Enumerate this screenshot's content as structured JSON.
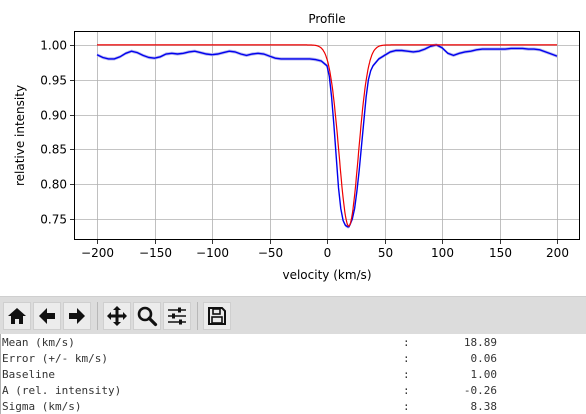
{
  "chart_data": {
    "type": "line",
    "title": "Profile",
    "xlabel": "velocity (km/s)",
    "ylabel": "relative intensity",
    "xlim": [
      -220,
      220
    ],
    "ylim": [
      0.72,
      1.02
    ],
    "grid": true,
    "xticks": [
      -200,
      -150,
      -100,
      -50,
      0,
      50,
      100,
      150,
      200
    ],
    "xtick_labels": [
      "−200",
      "−150",
      "−100",
      "−50",
      "0",
      "50",
      "100",
      "150",
      "200"
    ],
    "yticks": [
      0.75,
      0.8,
      0.85,
      0.9,
      0.95,
      1.0
    ],
    "ytick_labels": [
      "0.75",
      "0.80",
      "0.85",
      "0.90",
      "0.95",
      "1.00"
    ],
    "series": [
      {
        "color": "#0000ee",
        "band_color": "#b0b0ee",
        "x": [
          -200,
          -195,
          -190,
          -185,
          -180,
          -175,
          -170,
          -165,
          -160,
          -155,
          -150,
          -145,
          -140,
          -135,
          -130,
          -125,
          -120,
          -115,
          -110,
          -105,
          -100,
          -95,
          -90,
          -85,
          -80,
          -75,
          -70,
          -65,
          -60,
          -55,
          -50,
          -45,
          -40,
          -35,
          -30,
          -25,
          -20,
          -15,
          -10,
          -5,
          0,
          2,
          4,
          6,
          8,
          10,
          12,
          14,
          16,
          18,
          19,
          20,
          22,
          24,
          26,
          28,
          30,
          32,
          34,
          36,
          38,
          40,
          45,
          50,
          55,
          60,
          65,
          70,
          75,
          80,
          85,
          90,
          95,
          100,
          105,
          110,
          115,
          120,
          125,
          130,
          135,
          140,
          145,
          150,
          155,
          160,
          165,
          170,
          175,
          180,
          185,
          190,
          195,
          200
        ],
        "y": [
          0.986,
          0.982,
          0.98,
          0.98,
          0.983,
          0.988,
          0.991,
          0.989,
          0.985,
          0.982,
          0.981,
          0.983,
          0.987,
          0.988,
          0.987,
          0.988,
          0.99,
          0.991,
          0.989,
          0.987,
          0.986,
          0.987,
          0.989,
          0.991,
          0.99,
          0.987,
          0.985,
          0.987,
          0.988,
          0.987,
          0.984,
          0.981,
          0.98,
          0.98,
          0.98,
          0.98,
          0.98,
          0.98,
          0.979,
          0.977,
          0.97,
          0.955,
          0.925,
          0.885,
          0.84,
          0.795,
          0.765,
          0.748,
          0.741,
          0.739,
          0.739,
          0.742,
          0.75,
          0.765,
          0.79,
          0.82,
          0.855,
          0.89,
          0.925,
          0.95,
          0.963,
          0.97,
          0.98,
          0.985,
          0.99,
          0.992,
          0.992,
          0.991,
          0.99,
          0.991,
          0.994,
          0.998,
          1.0,
          0.996,
          0.988,
          0.985,
          0.988,
          0.99,
          0.991,
          0.993,
          0.994,
          0.994,
          0.994,
          0.994,
          0.994,
          0.995,
          0.995,
          0.995,
          0.994,
          0.994,
          0.993,
          0.99,
          0.987,
          0.984
        ]
      },
      {
        "color": "#ee0000",
        "gaussian": {
          "baseline": 1.0,
          "amplitude": -0.26,
          "mean": 18.89,
          "sigma": 8.38
        },
        "x_range": [
          -200,
          200
        ]
      }
    ]
  },
  "toolbar": {
    "buttons": [
      {
        "name": "home-button",
        "icon": "home-icon"
      },
      {
        "name": "back-button",
        "icon": "arrow-left-icon"
      },
      {
        "name": "forward-button",
        "icon": "arrow-right-icon"
      },
      {
        "name": "pan-button",
        "icon": "move-icon"
      },
      {
        "name": "zoom-button",
        "icon": "zoom-icon"
      },
      {
        "name": "configure-subplots-button",
        "icon": "sliders-icon"
      },
      {
        "name": "save-button",
        "icon": "save-icon"
      }
    ]
  },
  "stats": {
    "rows": [
      {
        "label": "Mean (km/s)",
        "sep": ":",
        "value": "18.89"
      },
      {
        "label": "Error (+/- km/s)",
        "sep": ":",
        "value": "0.06"
      },
      {
        "label": "Baseline",
        "sep": ":",
        "value": "1.00"
      },
      {
        "label": "A (rel. intensity)",
        "sep": ":",
        "value": "-0.26"
      },
      {
        "label": "Sigma (km/s)",
        "sep": ":",
        "value": "8.38"
      }
    ]
  }
}
